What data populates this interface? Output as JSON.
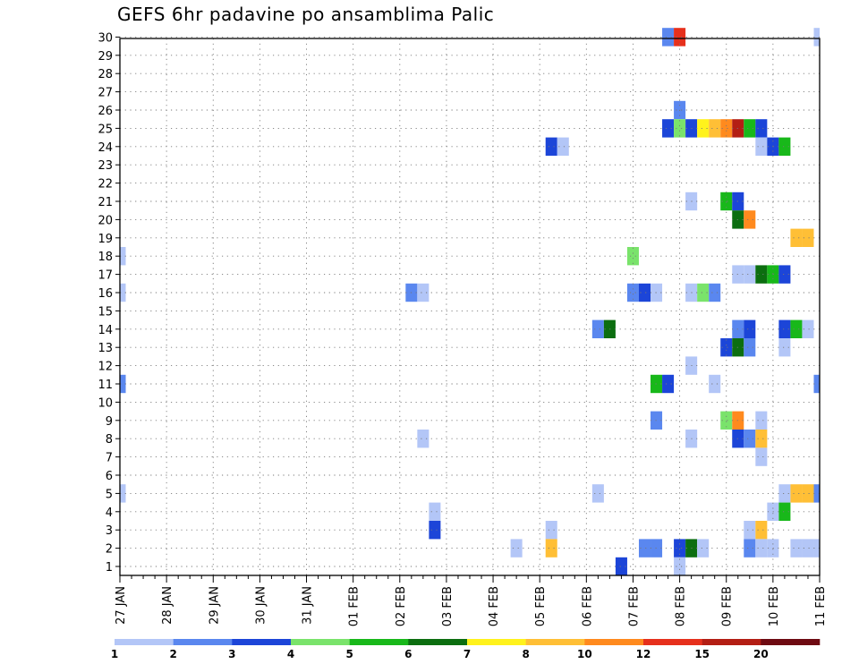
{
  "chart_data": {
    "type": "heatmap",
    "title": "GEFS 6hr padavine po ansamblima Palic",
    "xlabel": "",
    "ylabel": "",
    "y_range": [
      1,
      30
    ],
    "y_tick_labels": [
      "1",
      "2",
      "3",
      "4",
      "5",
      "6",
      "7",
      "8",
      "9",
      "10",
      "11",
      "12",
      "13",
      "14",
      "15",
      "16",
      "17",
      "18",
      "19",
      "20",
      "21",
      "22",
      "23",
      "24",
      "25",
      "26",
      "27",
      "28",
      "29",
      "30"
    ],
    "x_range": [
      "27 JAN",
      "11 FEB"
    ],
    "x_tick_labels": [
      "27 JAN",
      "28 JAN",
      "29 JAN",
      "30 JAN",
      "31 JAN",
      "01 FEB",
      "02 FEB",
      "03 FEB",
      "04 FEB",
      "05 FEB",
      "06 FEB",
      "07 FEB",
      "08 FEB",
      "09 FEB",
      "10 FEB",
      "11 FEB"
    ],
    "time_step_hours": 6,
    "grid": true,
    "legend_position": "bottom",
    "legend": {
      "labels": [
        "1",
        "2",
        "3",
        "4",
        "5",
        "6",
        "7",
        "8",
        "10",
        "12",
        "15",
        "20"
      ],
      "colors": [
        "#b3c6f7",
        "#5a87ef",
        "#1c45d8",
        "#7ae36b",
        "#18b81a",
        "#0c6e10",
        "#fff21c",
        "#ffbf36",
        "#ff8a1e",
        "#e6301c",
        "#b31e14",
        "#6e0a12"
      ]
    },
    "cells": [
      {
        "member": 30,
        "steps": [
          [
            47,
            1
          ],
          [
            48,
            9
          ],
          [
            60,
            0
          ]
        ]
      },
      {
        "member": 26,
        "steps": [
          [
            48,
            1
          ]
        ]
      },
      {
        "member": 25,
        "steps": [
          [
            47,
            2
          ],
          [
            48,
            3
          ],
          [
            49,
            2
          ],
          [
            50,
            6
          ],
          [
            51,
            7
          ],
          [
            52,
            8
          ],
          [
            53,
            10
          ],
          [
            54,
            4
          ],
          [
            55,
            2
          ]
        ]
      },
      {
        "member": 24,
        "steps": [
          [
            37,
            2
          ],
          [
            38,
            0
          ],
          [
            55,
            0
          ],
          [
            56,
            2
          ],
          [
            57,
            4
          ]
        ]
      },
      {
        "member": 21,
        "steps": [
          [
            49,
            0
          ],
          [
            52,
            4
          ],
          [
            53,
            2
          ]
        ]
      },
      {
        "member": 20,
        "steps": [
          [
            53,
            5
          ],
          [
            54,
            8
          ]
        ]
      },
      {
        "member": 19,
        "steps": [
          [
            58,
            7
          ],
          [
            59,
            7
          ]
        ]
      },
      {
        "member": 18,
        "steps": [
          [
            0,
            0
          ],
          [
            44,
            3
          ]
        ]
      },
      {
        "member": 17,
        "steps": [
          [
            53,
            0
          ],
          [
            54,
            0
          ],
          [
            55,
            5
          ],
          [
            56,
            4
          ],
          [
            57,
            2
          ]
        ]
      },
      {
        "member": 16,
        "steps": [
          [
            0,
            0
          ],
          [
            25,
            1
          ],
          [
            26,
            0
          ],
          [
            44,
            1
          ],
          [
            45,
            2
          ],
          [
            46,
            0
          ],
          [
            49,
            0
          ],
          [
            50,
            3
          ],
          [
            51,
            1
          ]
        ]
      },
      {
        "member": 14,
        "steps": [
          [
            41,
            1
          ],
          [
            42,
            5
          ],
          [
            53,
            1
          ],
          [
            54,
            2
          ],
          [
            57,
            2
          ],
          [
            58,
            4
          ],
          [
            59,
            0
          ]
        ]
      },
      {
        "member": 13,
        "steps": [
          [
            52,
            2
          ],
          [
            53,
            5
          ],
          [
            54,
            1
          ],
          [
            57,
            0
          ]
        ]
      },
      {
        "member": 12,
        "steps": [
          [
            49,
            0
          ]
        ]
      },
      {
        "member": 11,
        "steps": [
          [
            0,
            1
          ],
          [
            46,
            4
          ],
          [
            47,
            2
          ],
          [
            51,
            0
          ],
          [
            60,
            1
          ]
        ]
      },
      {
        "member": 9,
        "steps": [
          [
            46,
            1
          ],
          [
            52,
            3
          ],
          [
            53,
            8
          ],
          [
            55,
            0
          ]
        ]
      },
      {
        "member": 8,
        "steps": [
          [
            26,
            0
          ],
          [
            49,
            0
          ],
          [
            53,
            2
          ],
          [
            54,
            1
          ],
          [
            55,
            7
          ]
        ]
      },
      {
        "member": 7,
        "steps": [
          [
            55,
            0
          ]
        ]
      },
      {
        "member": 5,
        "steps": [
          [
            0,
            0
          ],
          [
            41,
            0
          ],
          [
            57,
            0
          ],
          [
            58,
            7
          ],
          [
            59,
            7
          ],
          [
            60,
            1
          ]
        ]
      },
      {
        "member": 4,
        "steps": [
          [
            27,
            0
          ],
          [
            56,
            0
          ],
          [
            57,
            4
          ]
        ]
      },
      {
        "member": 3,
        "steps": [
          [
            27,
            2
          ],
          [
            37,
            0
          ],
          [
            54,
            0
          ],
          [
            55,
            7
          ]
        ]
      },
      {
        "member": 2,
        "steps": [
          [
            34,
            0
          ],
          [
            37,
            7
          ],
          [
            45,
            1
          ],
          [
            46,
            1
          ],
          [
            48,
            2
          ],
          [
            49,
            5
          ],
          [
            50,
            0
          ],
          [
            54,
            1
          ],
          [
            55,
            0
          ],
          [
            56,
            0
          ],
          [
            58,
            0
          ],
          [
            59,
            0
          ],
          [
            60,
            0
          ]
        ]
      },
      {
        "member": 1,
        "steps": [
          [
            43,
            2
          ],
          [
            48,
            0
          ]
        ]
      }
    ]
  }
}
